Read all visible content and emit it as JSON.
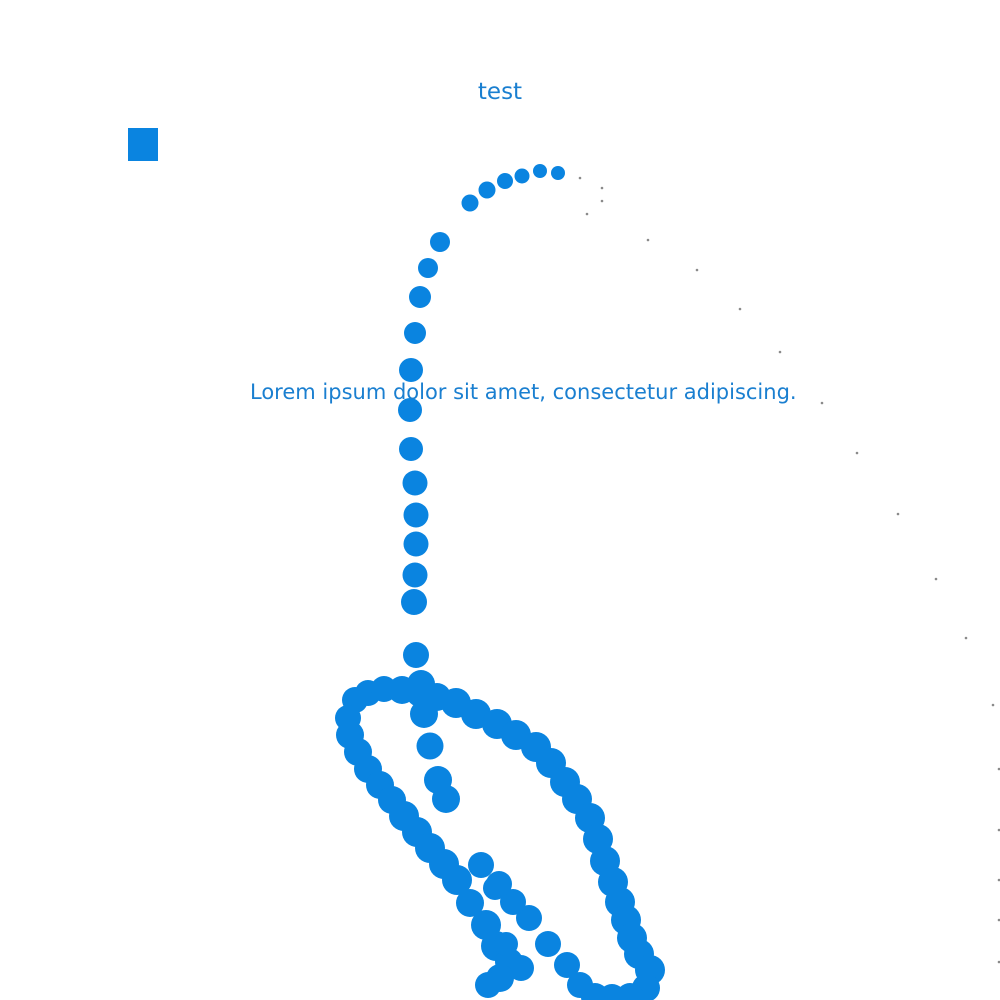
{
  "title": "test",
  "body_text": "Lorem ipsum dolor sit amet, consectetur adipiscing.",
  "colors": {
    "accent": "#0a84e0",
    "text": "#1a7fd0",
    "fine_dots": "#8a8a8a"
  }
}
